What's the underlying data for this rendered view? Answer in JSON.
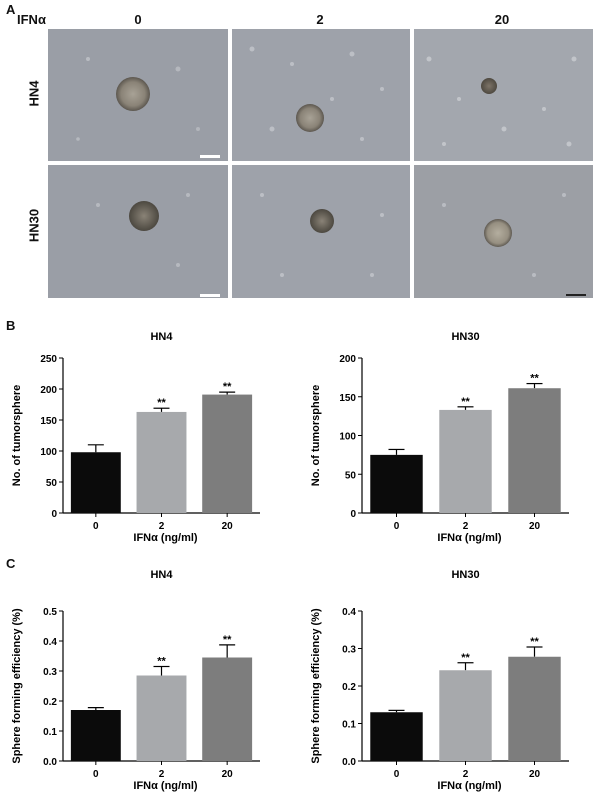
{
  "figure": {
    "panel_a": "A",
    "panel_b": "B",
    "panel_c": "C",
    "treatment_label": "IFNα",
    "dose_headers": [
      "0",
      "2",
      "20"
    ],
    "row_labels": [
      "HN4",
      "HN30"
    ]
  },
  "chart_data": [
    {
      "type": "bar",
      "title": "HN4",
      "categories": [
        "0",
        "2",
        "20"
      ],
      "values": [
        98,
        163,
        191
      ],
      "errors": [
        12,
        6,
        4
      ],
      "significance": [
        "",
        "**",
        "**"
      ],
      "xlabel": "IFNα (ng/ml)",
      "ylabel": "No. of tumorsphere",
      "ylim": [
        0,
        250
      ],
      "yticks": [
        "0",
        "50",
        "100",
        "150",
        "200",
        "250"
      ],
      "colors": [
        "#0b0b0b",
        "#a7a9ac",
        "#7d7d7d"
      ]
    },
    {
      "type": "bar",
      "title": "HN30",
      "categories": [
        "0",
        "2",
        "20"
      ],
      "values": [
        75,
        133,
        161
      ],
      "errors": [
        7,
        4,
        6
      ],
      "significance": [
        "",
        "**",
        "**"
      ],
      "xlabel": "IFNα (ng/ml)",
      "ylabel": "No. of tumorsphere",
      "ylim": [
        0,
        200
      ],
      "yticks": [
        "0",
        "50",
        "100",
        "150",
        "200"
      ],
      "colors": [
        "#0b0b0b",
        "#a7a9ac",
        "#7d7d7d"
      ]
    },
    {
      "type": "bar",
      "title": "HN4",
      "categories": [
        "0",
        "2",
        "20"
      ],
      "values": [
        0.17,
        0.285,
        0.345
      ],
      "errors": [
        0.008,
        0.03,
        0.042
      ],
      "significance": [
        "",
        "**",
        "**"
      ],
      "xlabel": "IFNα (ng/ml)",
      "ylabel": "Sphere forming  efficiency (%)",
      "ylim": [
        0,
        0.5
      ],
      "yticks": [
        "0.0",
        "0.1",
        "0.2",
        "0.3",
        "0.4",
        "0.5"
      ],
      "colors": [
        "#0b0b0b",
        "#a7a9ac",
        "#7d7d7d"
      ]
    },
    {
      "type": "bar",
      "title": "HN30",
      "categories": [
        "0",
        "2",
        "20"
      ],
      "values": [
        0.13,
        0.242,
        0.278
      ],
      "errors": [
        0.005,
        0.02,
        0.026
      ],
      "significance": [
        "",
        "**",
        "**"
      ],
      "xlabel": "IFNα (ng/ml)",
      "ylabel": "Sphere forming  efficiency (%)",
      "ylim": [
        0,
        0.4
      ],
      "yticks": [
        "0.0",
        "0.1",
        "0.2",
        "0.3",
        "0.4"
      ],
      "colors": [
        "#0b0b0b",
        "#a7a9ac",
        "#7d7d7d"
      ]
    }
  ]
}
